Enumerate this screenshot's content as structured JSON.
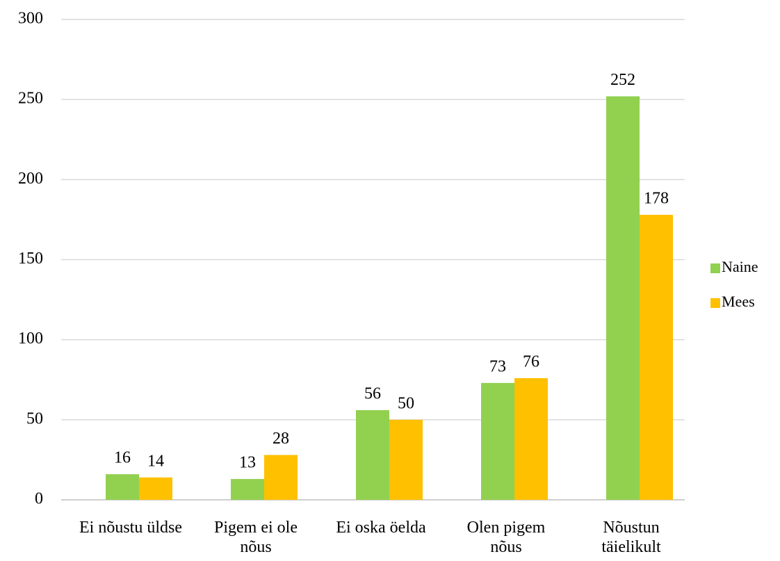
{
  "chart_data": {
    "type": "bar",
    "categories": [
      "Ei nõustu üldse",
      "Pigem ei ole nõus",
      "Ei oska öelda",
      "Olen pigem nõus",
      "Nõustun täielikult"
    ],
    "series": [
      {
        "name": "Naine",
        "color": "#92d050",
        "values": [
          16,
          13,
          56,
          73,
          252
        ]
      },
      {
        "name": "Mees",
        "color": "#ffc000",
        "values": [
          14,
          28,
          50,
          76,
          178
        ]
      }
    ],
    "ylim": [
      0,
      300
    ],
    "yticks": [
      0,
      50,
      100,
      150,
      200,
      250,
      300
    ],
    "grid": true,
    "legend": "right"
  }
}
